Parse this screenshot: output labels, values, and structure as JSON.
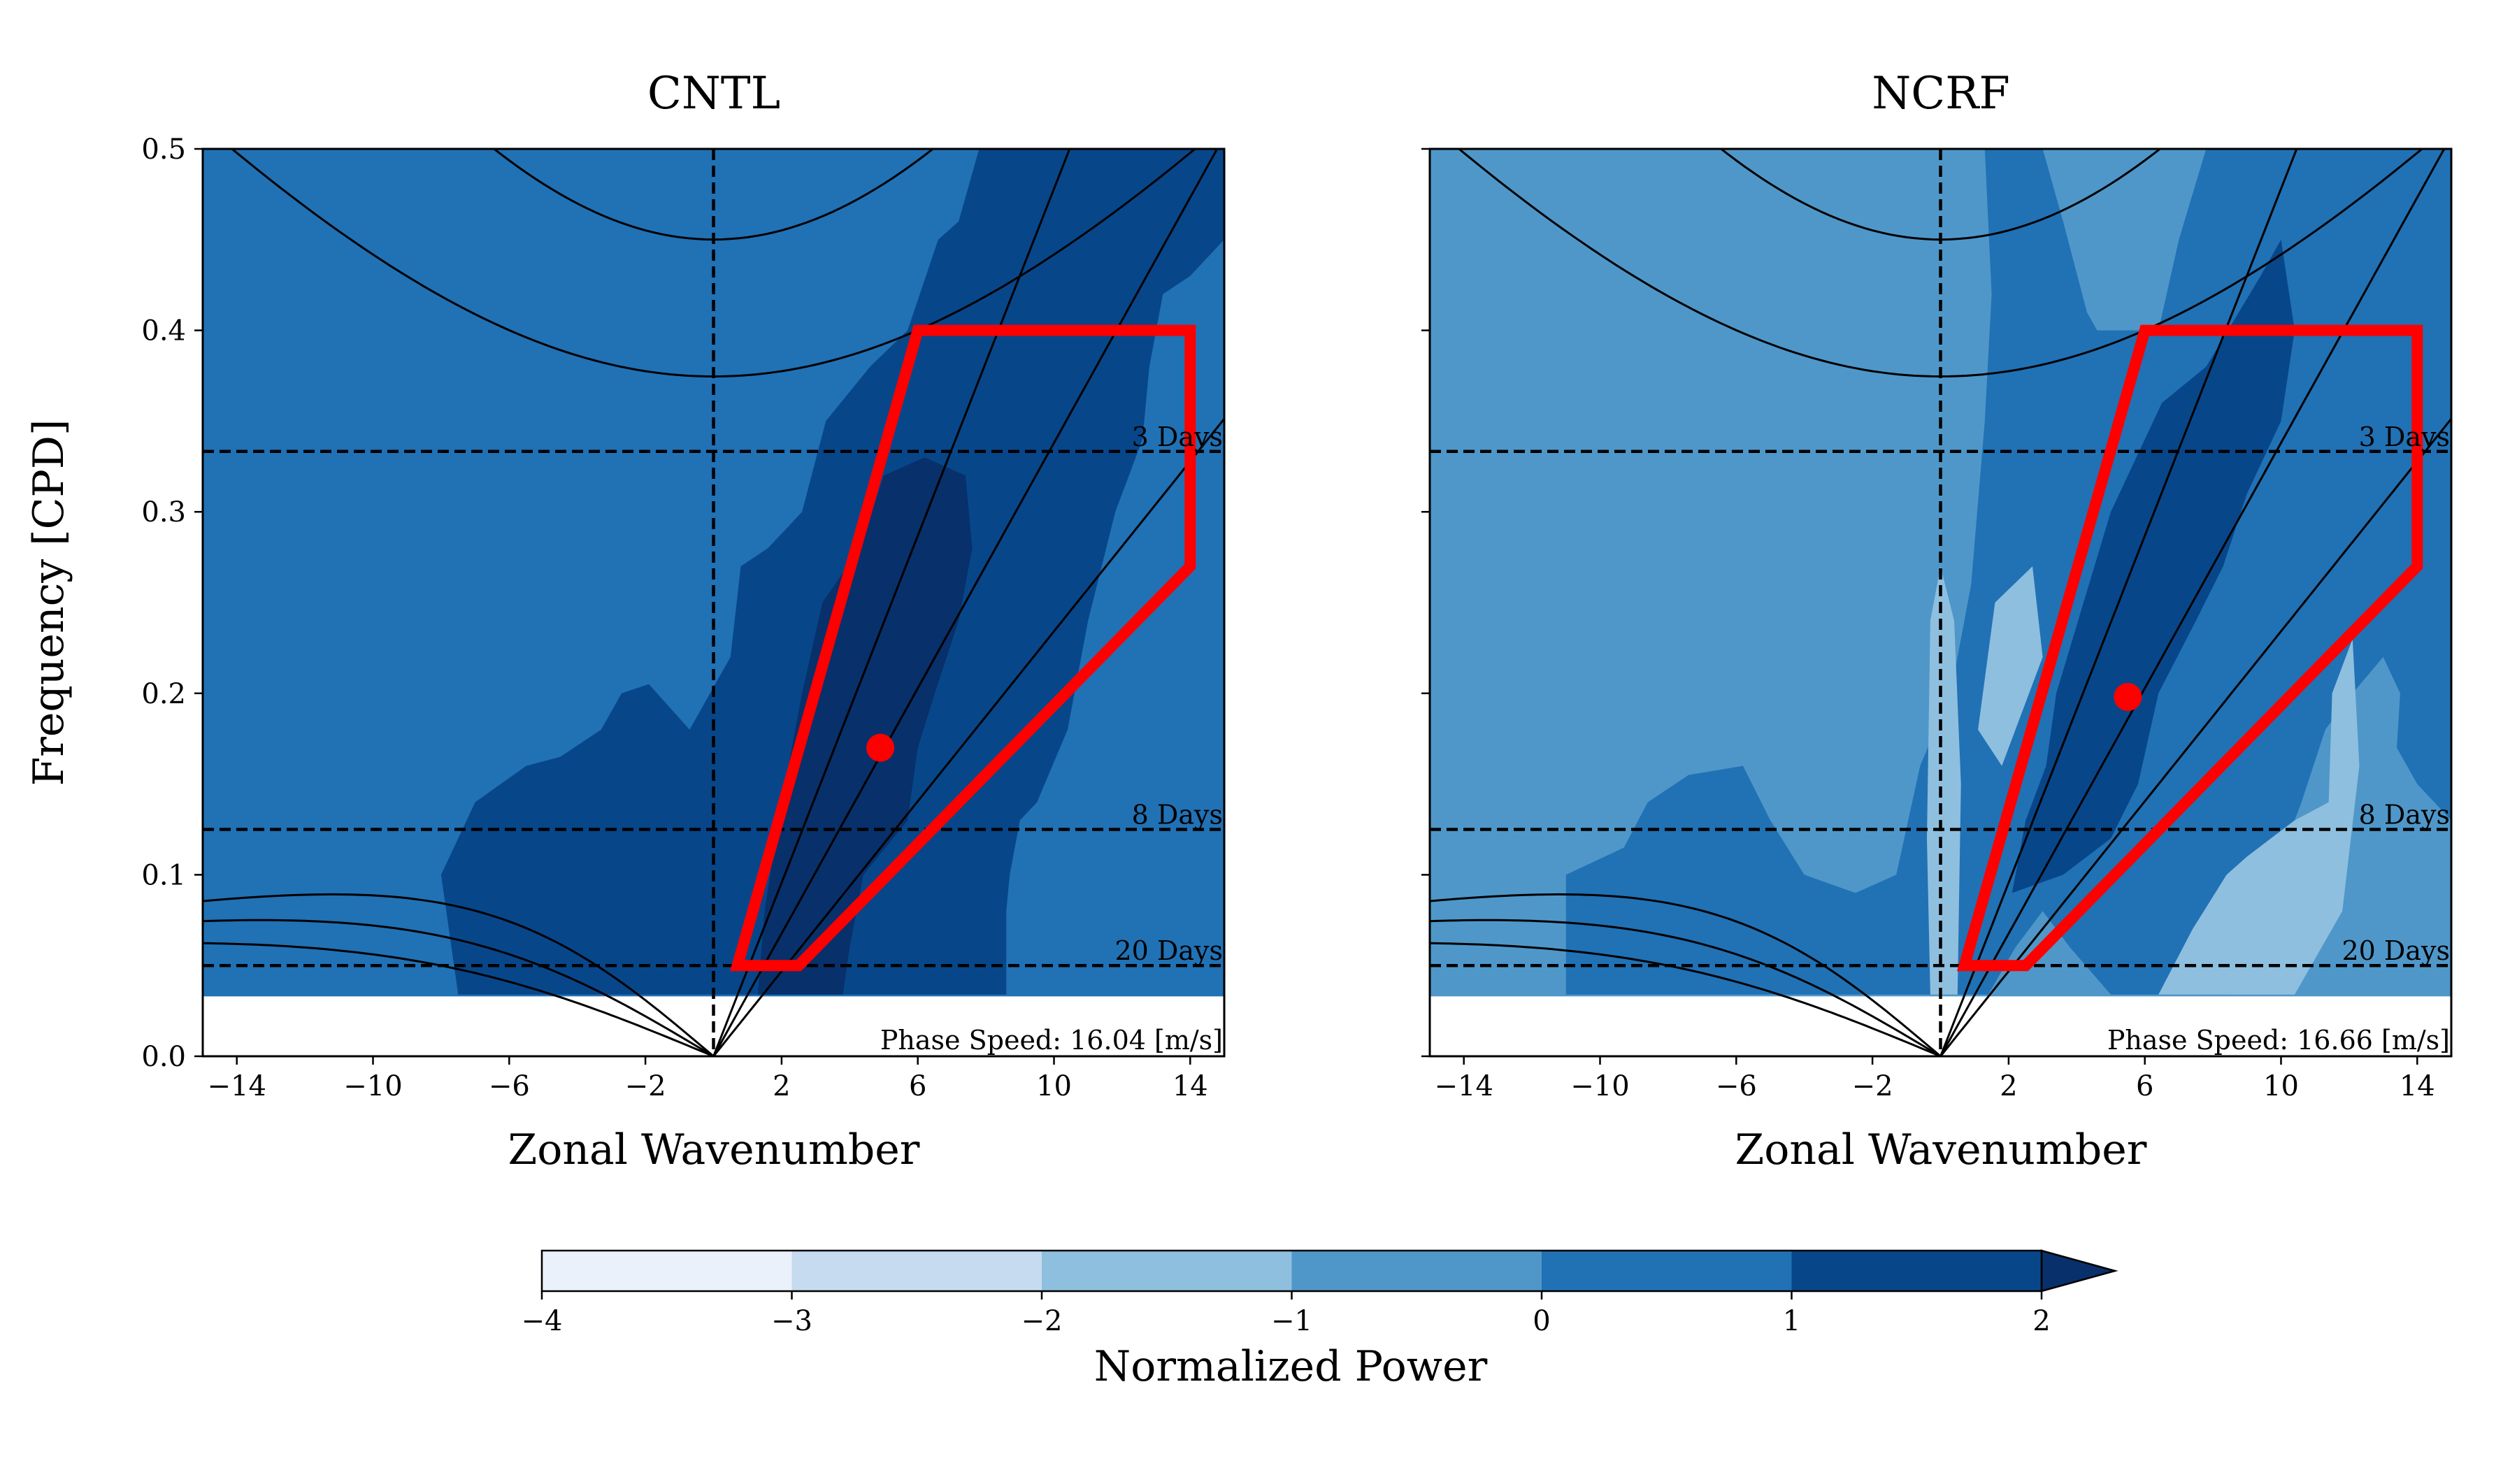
{
  "chart_data": [
    {
      "type": "heatmap",
      "title": "CNTL",
      "xlabel": "Zonal Wavenumber",
      "ylabel": "Frequency [CPD]",
      "xlim": [
        -15,
        15
      ],
      "ylim": [
        0,
        0.5
      ],
      "xticks": [
        -14,
        -10,
        -6,
        -2,
        2,
        6,
        10,
        14
      ],
      "yticks": [
        0.0,
        0.1,
        0.2,
        0.3,
        0.4,
        0.5
      ],
      "period_lines": [
        {
          "label": "3 Days",
          "frequency": 0.3333
        },
        {
          "label": "8 Days",
          "frequency": 0.125
        },
        {
          "label": "20 Days",
          "frequency": 0.05
        }
      ],
      "zero_wavenumber_line": 0,
      "masked_below_frequency": 0.033,
      "box_polygon": [
        [
          0.7,
          0.05
        ],
        [
          2.5,
          0.05
        ],
        [
          14,
          0.27
        ],
        [
          14,
          0.4
        ],
        [
          6,
          0.4
        ]
      ],
      "peak_point": {
        "wavenumber": 4.9,
        "frequency": 0.17
      },
      "annotation": "Phase Speed: 16.04 [m/s]",
      "background_level": 0.5,
      "regions": [
        {
          "level": 1.5,
          "points": [
            [
              -7.5,
              0.034
            ],
            [
              -8,
              0.1
            ],
            [
              -7,
              0.14
            ],
            [
              -5.5,
              0.16
            ],
            [
              -4.5,
              0.165
            ],
            [
              -3.3,
              0.18
            ],
            [
              -2.7,
              0.2
            ],
            [
              -1.9,
              0.205
            ],
            [
              -0.7,
              0.18
            ],
            [
              0.5,
              0.22
            ],
            [
              0.8,
              0.27
            ],
            [
              1.6,
              0.28
            ],
            [
              2.1,
              0.29
            ],
            [
              2.6,
              0.3
            ],
            [
              3.3,
              0.35
            ],
            [
              4.6,
              0.38
            ],
            [
              5.7,
              0.4
            ],
            [
              6.6,
              0.45
            ],
            [
              7.2,
              0.46
            ],
            [
              7.8,
              0.5
            ],
            [
              15,
              0.5
            ],
            [
              15,
              0.45
            ],
            [
              14,
              0.43
            ],
            [
              13.2,
              0.42
            ],
            [
              12.8,
              0.38
            ],
            [
              12.6,
              0.34
            ],
            [
              11.8,
              0.3
            ],
            [
              11,
              0.24
            ],
            [
              10.6,
              0.2
            ],
            [
              10.4,
              0.18
            ],
            [
              9.5,
              0.14
            ],
            [
              9,
              0.13
            ],
            [
              8.7,
              0.1
            ],
            [
              8.6,
              0.08
            ],
            [
              8.6,
              0.034
            ]
          ]
        },
        {
          "level": 2,
          "points": [
            [
              1.3,
              0.034
            ],
            [
              1.5,
              0.08
            ],
            [
              2,
              0.14
            ],
            [
              2.6,
              0.2
            ],
            [
              3.2,
              0.25
            ],
            [
              4.3,
              0.28
            ],
            [
              5,
              0.32
            ],
            [
              6.2,
              0.33
            ],
            [
              7.4,
              0.32
            ],
            [
              7.6,
              0.28
            ],
            [
              7.2,
              0.24
            ],
            [
              6.5,
              0.2
            ],
            [
              6,
              0.17
            ],
            [
              5.7,
              0.13
            ],
            [
              4.4,
              0.1
            ],
            [
              4,
              0.06
            ],
            [
              3.8,
              0.034
            ]
          ]
        }
      ]
    },
    {
      "type": "heatmap",
      "title": "NCRF",
      "xlabel": "Zonal Wavenumber",
      "ylabel": "",
      "xlim": [
        -15,
        15
      ],
      "ylim": [
        0,
        0.5
      ],
      "xticks": [
        -14,
        -10,
        -6,
        -2,
        2,
        6,
        10,
        14
      ],
      "yticks": [
        0.0,
        0.1,
        0.2,
        0.3,
        0.4,
        0.5
      ],
      "period_lines": [
        {
          "label": "3 Days",
          "frequency": 0.3333
        },
        {
          "label": "8 Days",
          "frequency": 0.125
        },
        {
          "label": "20 Days",
          "frequency": 0.05
        }
      ],
      "zero_wavenumber_line": 0,
      "masked_below_frequency": 0.033,
      "box_polygon": [
        [
          0.7,
          0.05
        ],
        [
          2.5,
          0.05
        ],
        [
          14,
          0.27
        ],
        [
          14,
          0.4
        ],
        [
          6,
          0.4
        ]
      ],
      "peak_point": {
        "wavenumber": 5.5,
        "frequency": 0.198
      },
      "annotation": "Phase Speed: 16.66 [m/s]",
      "background_level": -0.5,
      "regions": [
        {
          "level": 0.5,
          "points": [
            [
              -11,
              0.034
            ],
            [
              -11,
              0.1
            ],
            [
              -9.3,
              0.115
            ],
            [
              -8.6,
              0.14
            ],
            [
              -7.4,
              0.155
            ],
            [
              -5.8,
              0.16
            ],
            [
              -5,
              0.13
            ],
            [
              -4,
              0.1
            ],
            [
              -2.5,
              0.09
            ],
            [
              -1.3,
              0.1
            ],
            [
              -0.6,
              0.16
            ],
            [
              0.3,
              0.2
            ],
            [
              0.9,
              0.26
            ],
            [
              1.3,
              0.35
            ],
            [
              1.5,
              0.42
            ],
            [
              1.3,
              0.5
            ],
            [
              3,
              0.5
            ],
            [
              3.6,
              0.46
            ],
            [
              4.3,
              0.41
            ],
            [
              4.6,
              0.4
            ],
            [
              6.4,
              0.4
            ],
            [
              7,
              0.45
            ],
            [
              7.8,
              0.5
            ],
            [
              15,
              0.5
            ],
            [
              15,
              0.13
            ],
            [
              14,
              0.15
            ],
            [
              13.4,
              0.17
            ],
            [
              13.5,
              0.2
            ],
            [
              13,
              0.22
            ],
            [
              12.1,
              0.2
            ],
            [
              11.3,
              0.18
            ],
            [
              10.6,
              0.14
            ],
            [
              9.8,
              0.1
            ],
            [
              9,
              0.08
            ],
            [
              8.5,
              0.034
            ],
            [
              5,
              0.034
            ],
            [
              3.8,
              0.06
            ],
            [
              3,
              0.08
            ],
            [
              2.2,
              0.06
            ],
            [
              1.4,
              0.034
            ]
          ]
        },
        {
          "level": 1.5,
          "points": [
            [
              2.1,
              0.09
            ],
            [
              2.5,
              0.13
            ],
            [
              3.1,
              0.16
            ],
            [
              3.4,
              0.2
            ],
            [
              4.2,
              0.25
            ],
            [
              5,
              0.3
            ],
            [
              6.5,
              0.36
            ],
            [
              7.8,
              0.38
            ],
            [
              9.4,
              0.43
            ],
            [
              10,
              0.45
            ],
            [
              10.4,
              0.4
            ],
            [
              10,
              0.35
            ],
            [
              9,
              0.31
            ],
            [
              8.3,
              0.27
            ],
            [
              7.5,
              0.24
            ],
            [
              6.4,
              0.2
            ],
            [
              5.8,
              0.15
            ],
            [
              5,
              0.12
            ],
            [
              3.6,
              0.1
            ]
          ]
        },
        {
          "level": -1.5,
          "points": [
            [
              -0.3,
              0.034
            ],
            [
              -0.4,
              0.12
            ],
            [
              -0.3,
              0.24
            ],
            [
              0,
              0.27
            ],
            [
              0.4,
              0.24
            ],
            [
              0.6,
              0.15
            ],
            [
              0.5,
              0.034
            ]
          ]
        },
        {
          "level": -1.5,
          "points": [
            [
              1.1,
              0.18
            ],
            [
              1.6,
              0.25
            ],
            [
              2.7,
              0.27
            ],
            [
              3,
              0.22
            ],
            [
              1.8,
              0.16
            ]
          ]
        },
        {
          "level": -1.5,
          "points": [
            [
              6.4,
              0.034
            ],
            [
              7.4,
              0.07
            ],
            [
              8.4,
              0.1
            ],
            [
              9,
              0.11
            ],
            [
              10.4,
              0.13
            ],
            [
              11.4,
              0.14
            ],
            [
              11.5,
              0.2
            ],
            [
              12.1,
              0.23
            ],
            [
              12.3,
              0.16
            ],
            [
              11.8,
              0.08
            ],
            [
              10.4,
              0.034
            ]
          ]
        }
      ]
    }
  ],
  "colorbar": {
    "label": "Normalized Power",
    "ticks": [
      -4,
      -3,
      -2,
      -1,
      0,
      1,
      2
    ],
    "colors": [
      "#eaf1fa",
      "#c6dbef",
      "#8fbfde",
      "#4f97c9",
      "#2171b5",
      "#08468a"
    ],
    "extend_color": "#08306b"
  },
  "colors": {
    "box": "#ff0000",
    "peak_point": "#ff0000",
    "level_-1.5": "#8fbfde",
    "level_-0.5": "#4f97c9",
    "level_0.5": "#2171b5",
    "level_1.5": "#08468a",
    "level_2": "#08306b"
  }
}
